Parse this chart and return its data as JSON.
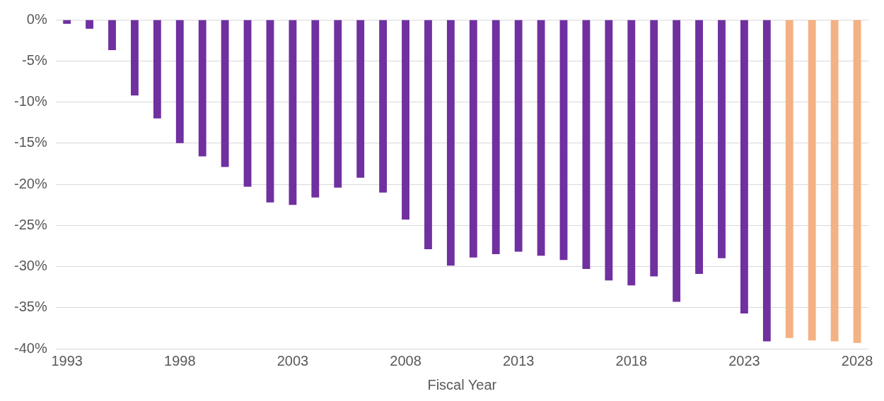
{
  "chart_data": {
    "type": "bar",
    "xlabel": "Fiscal Year",
    "categories": [
      "1993",
      null,
      null,
      null,
      null,
      "1998",
      null,
      null,
      null,
      null,
      "2003",
      null,
      null,
      null,
      null,
      "2008",
      null,
      null,
      null,
      null,
      "2013",
      null,
      null,
      null,
      null,
      "2018",
      null,
      null,
      null,
      null,
      "2023",
      null,
      null,
      null,
      null,
      "2028"
    ],
    "values": [
      -0.5,
      -1.1,
      -3.7,
      -9.2,
      -12.0,
      -15.0,
      -16.6,
      -17.9,
      -20.3,
      -22.2,
      -22.5,
      -21.6,
      -20.4,
      -19.2,
      -21.0,
      -24.3,
      -27.9,
      -29.9,
      -28.9,
      -28.5,
      -28.2,
      -28.7,
      -29.2,
      -30.3,
      -31.7,
      -32.3,
      -31.2,
      -34.3,
      -30.9,
      -29.0,
      -35.7,
      -39.1,
      -38.7,
      -39.0,
      -39.1,
      -39.3
    ],
    "colors": [
      "#7030a0",
      "#7030a0",
      "#7030a0",
      "#7030a0",
      "#7030a0",
      "#7030a0",
      "#7030a0",
      "#7030a0",
      "#7030a0",
      "#7030a0",
      "#7030a0",
      "#7030a0",
      "#7030a0",
      "#7030a0",
      "#7030a0",
      "#7030a0",
      "#7030a0",
      "#7030a0",
      "#7030a0",
      "#7030a0",
      "#7030a0",
      "#7030a0",
      "#7030a0",
      "#7030a0",
      "#7030a0",
      "#7030a0",
      "#7030a0",
      "#7030a0",
      "#7030a0",
      "#7030a0",
      "#7030a0",
      "#7030a0",
      "#f4b183",
      "#f4b183",
      "#f4b183",
      "#f4b183"
    ],
    "ylim": [
      -40,
      0
    ],
    "yticks": [
      {
        "value": 0,
        "label": "0%"
      },
      {
        "value": -5,
        "label": "-5%"
      },
      {
        "value": -10,
        "label": "-10%"
      },
      {
        "value": -15,
        "label": "-15%"
      },
      {
        "value": -20,
        "label": "-20%"
      },
      {
        "value": -25,
        "label": "-25%"
      },
      {
        "value": -30,
        "label": "-30%"
      },
      {
        "value": -35,
        "label": "-35%"
      },
      {
        "value": -40,
        "label": "-40%"
      }
    ],
    "grid": "y",
    "legend": false
  }
}
